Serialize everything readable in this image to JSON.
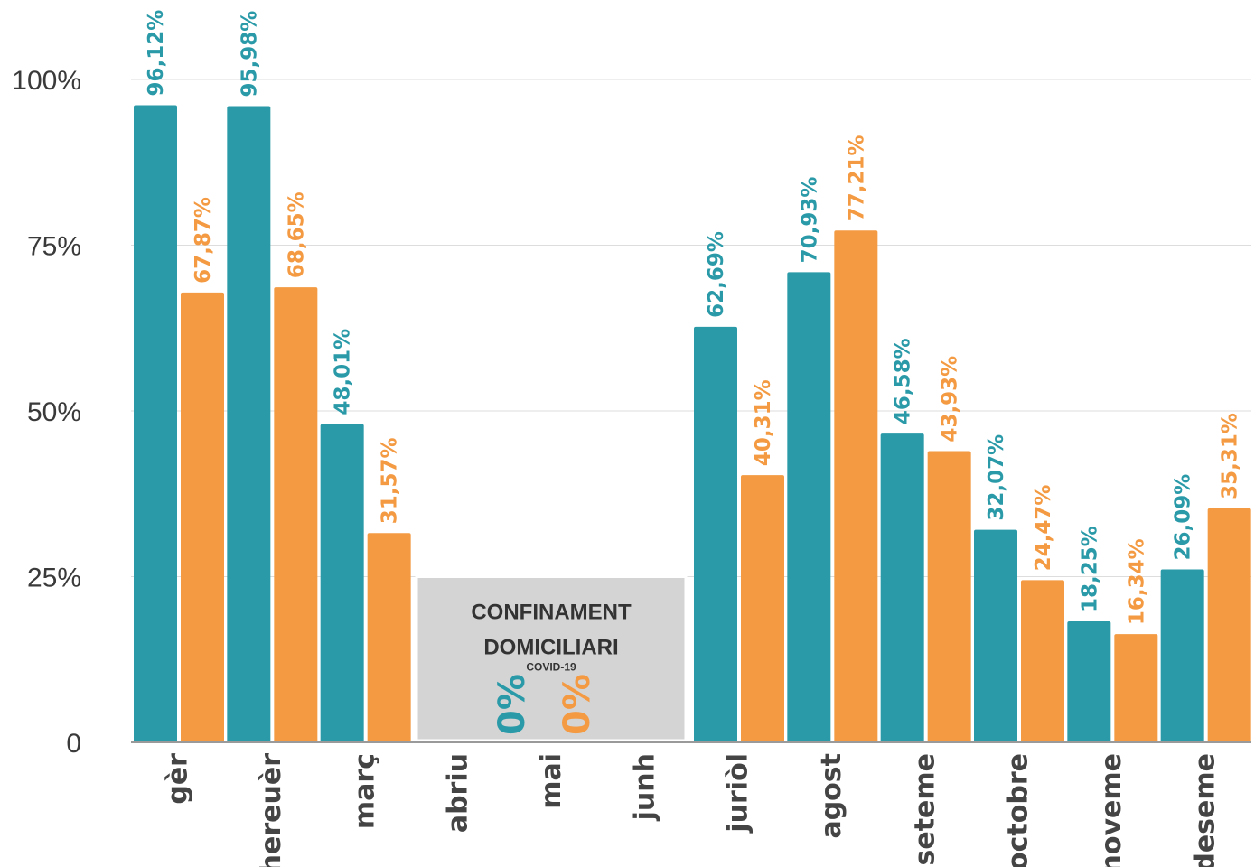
{
  "chart_data": {
    "type": "bar",
    "categories": [
      "gèr",
      "hereuèr",
      "març",
      "abriu",
      "mai",
      "junh",
      "juriòl",
      "agost",
      "seteme",
      "octobre",
      "noveme",
      "deseme"
    ],
    "series": [
      {
        "color": "#2a9aa8",
        "values": [
          96.12,
          95.98,
          48.01,
          null,
          null,
          null,
          62.69,
          70.93,
          46.58,
          32.07,
          18.25,
          26.09
        ],
        "labels": [
          "96,12%",
          "95,98%",
          "48,01%",
          "",
          "",
          "",
          "62,69%",
          "70,93%",
          "46,58%",
          "32,07%",
          "18,25%",
          "26,09%"
        ]
      },
      {
        "color": "#f39a42",
        "values": [
          67.87,
          68.65,
          31.57,
          null,
          null,
          null,
          40.31,
          77.21,
          43.93,
          24.47,
          16.34,
          35.31
        ],
        "labels": [
          "67,87%",
          "68,65%",
          "31,57%",
          "",
          "",
          "",
          "40,31%",
          "77,21%",
          "43,93%",
          "24,47%",
          "16,34%",
          "35,31%"
        ]
      }
    ],
    "y_ticks": [
      {
        "value": 0,
        "label": "0"
      },
      {
        "value": 25,
        "label": "25%"
      },
      {
        "value": 50,
        "label": "50%"
      },
      {
        "value": 75,
        "label": "75%"
      },
      {
        "value": 100,
        "label": "100%"
      }
    ],
    "ylim": [
      0,
      100
    ],
    "grid": true,
    "legend": "none",
    "annotation": {
      "title_line1": "CONFINAMENT",
      "title_line2": "DOMICILIARI",
      "subtitle": "COVID-19",
      "zero_label_1": "0%",
      "zero_label_2": "0%",
      "spans_categories": [
        "abriu",
        "mai",
        "junh"
      ],
      "height_value": 25,
      "color": "#d4d4d4"
    }
  }
}
